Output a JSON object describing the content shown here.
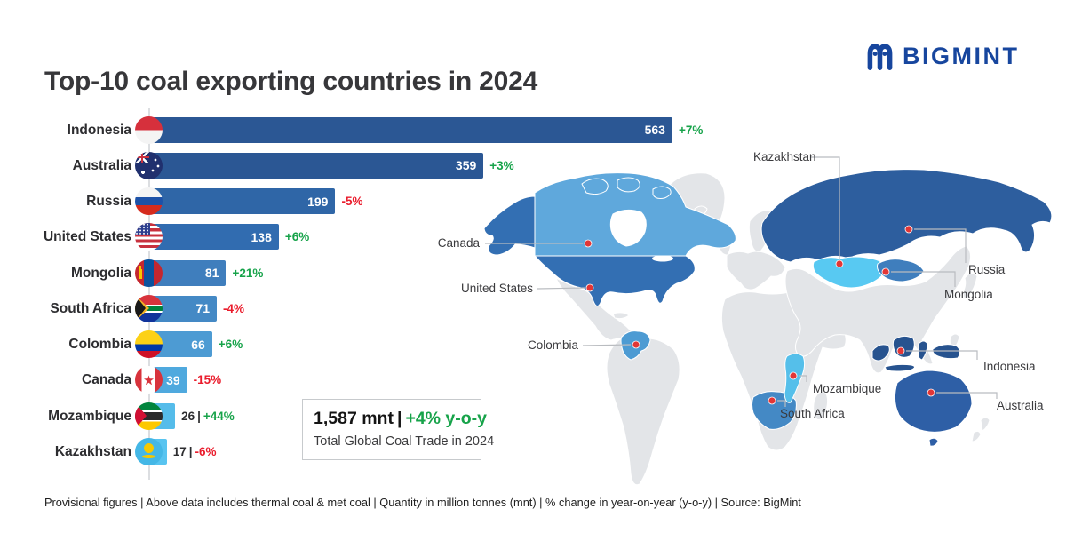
{
  "header": {
    "title": "Top-10 coal exporting countries in 2024",
    "logo_text": "BIGMINT"
  },
  "chart_data": {
    "type": "bar",
    "orientation": "horizontal",
    "title": "Top-10 coal exporting countries in 2024",
    "categories": [
      "Indonesia",
      "Australia",
      "Russia",
      "United States",
      "Mongolia",
      "South Africa",
      "Colombia",
      "Canada",
      "Mozambique",
      "Kazakhstan"
    ],
    "values": [
      563,
      359,
      199,
      138,
      81,
      71,
      66,
      39,
      26,
      17
    ],
    "changes": [
      "+7%",
      "+3%",
      "-5%",
      "+6%",
      "+21%",
      "-4%",
      "+6%",
      "-15%",
      "+44%",
      "-6%"
    ],
    "bar_colors": [
      "#2b5794",
      "#2b5794",
      "#2f66a7",
      "#316cb0",
      "#3f7ebd",
      "#4489c5",
      "#4d9bd3",
      "#4fa9de",
      "#55bcea",
      "#58c4f0"
    ],
    "flags": [
      "indonesia",
      "australia",
      "russia",
      "united-states",
      "mongolia",
      "south-africa",
      "colombia",
      "canada",
      "mozambique",
      "kazakhstan"
    ],
    "separator": "|",
    "unit": "mnt",
    "xlim": [
      0,
      600
    ],
    "grid": false,
    "value_label_position": "inside-end"
  },
  "total_box": {
    "headline_value": "1,587 mnt",
    "separator": "|",
    "headline_change": "+4% y-o-y",
    "subtitle": "Total Global Coal Trade in 2024"
  },
  "map": {
    "labels": [
      "Canada",
      "United States",
      "Colombia",
      "Kazakhstan",
      "Russia",
      "Mongolia",
      "Indonesia",
      "Mozambique",
      "South Africa",
      "Australia"
    ],
    "dot_color": "#e23636",
    "country_colors": {
      "canada": "#5fa8dc",
      "united-states": "#336fb3",
      "colombia": "#4d9bd3",
      "russia": "#2d5e9e",
      "kazakhstan": "#58c9f2",
      "mongolia": "#3f7ebd",
      "indonesia": "#27538f",
      "australia": "#2e5fa6",
      "south-africa": "#4489c5",
      "mozambique": "#55bfea"
    }
  },
  "footer": {
    "text": "Provisional figures | Above data includes thermal coal & met coal | Quantity in million tonnes (mnt) | % change in year-on-year (y-o-y) | Source: BigMint"
  },
  "colors": {
    "positive": "#17a34a",
    "negative": "#ea1c2c",
    "brand_blue": "#17469e"
  }
}
